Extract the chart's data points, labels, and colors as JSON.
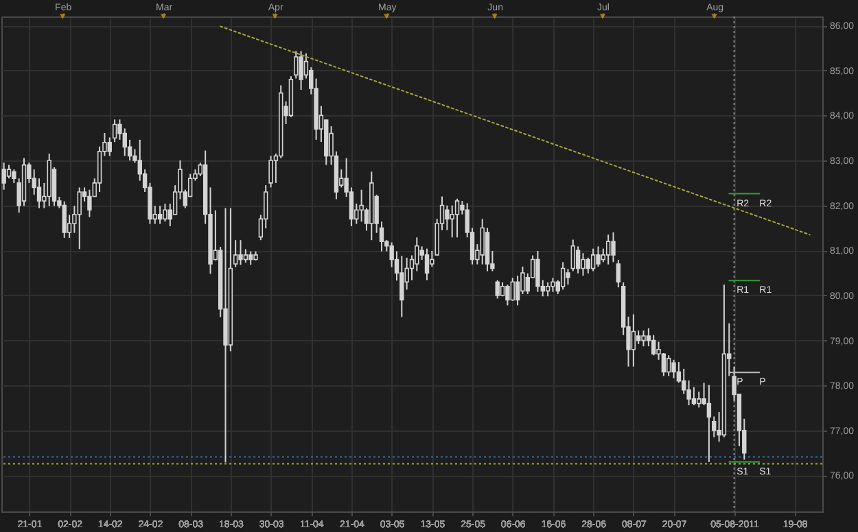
{
  "chart_data": {
    "type": "candlestick",
    "categories": [
      null,
      null,
      null,
      null,
      null,
      "21-01",
      null,
      null,
      null,
      null,
      null,
      null,
      null,
      "02-02",
      null,
      null,
      null,
      null,
      null,
      null,
      null,
      "14-02",
      null,
      null,
      null,
      null,
      null,
      null,
      null,
      "24-02",
      null,
      null,
      null,
      null,
      null,
      null,
      null,
      "08-03",
      null,
      null,
      null,
      null,
      null,
      null,
      null,
      "18-03",
      null,
      null,
      null,
      null,
      null,
      null,
      null,
      "30-03",
      null,
      null,
      null,
      null,
      null,
      null,
      null,
      "11-04",
      null,
      null,
      null,
      null,
      null,
      null,
      null,
      "21-04",
      null,
      null,
      null,
      null,
      null,
      null,
      null,
      "03-05",
      null,
      null,
      null,
      null,
      null,
      null,
      null,
      "13-05",
      null,
      null,
      null,
      null,
      null,
      null,
      null,
      "25-05",
      null,
      null,
      null,
      null,
      null,
      null,
      null,
      "06-06",
      null,
      null,
      null,
      null,
      null,
      null,
      null,
      "16-06",
      null,
      null,
      null,
      null,
      null,
      null,
      null,
      "28-06",
      null,
      null,
      null,
      null,
      null,
      null,
      null,
      "08-07",
      null,
      null,
      null,
      null,
      null,
      null,
      null,
      "20-07",
      null,
      null,
      null,
      null,
      null,
      null,
      null,
      null,
      null,
      null,
      null,
      "05-08-2011",
      null,
      null,
      null,
      null,
      null,
      null,
      null,
      null,
      null,
      null,
      null,
      "19-08",
      null,
      null,
      null,
      null,
      null
    ],
    "x2lim": [
      "2011-01-15",
      "2011-08-31"
    ],
    "x2ticks": [
      {
        "value": "2011-02-01",
        "label": "Feb"
      },
      {
        "value": "2011-03-01",
        "label": "Mar"
      },
      {
        "value": "2011-04-01",
        "label": "Apr"
      },
      {
        "value": "2011-05-02",
        "label": "May"
      },
      {
        "value": "2011-06-01",
        "label": "Jun"
      },
      {
        "value": "2011-07-01",
        "label": "Jul"
      },
      {
        "value": "2011-08-01",
        "label": "Aug"
      }
    ],
    "ylim": [
      75.2,
      86.2
    ],
    "yticks": [
      {
        "value": 76,
        "label": "76,00"
      },
      {
        "value": 77,
        "label": "77,00"
      },
      {
        "value": 78,
        "label": "78,00"
      },
      {
        "value": 79,
        "label": "79,00"
      },
      {
        "value": 80,
        "label": "80,00"
      },
      {
        "value": 81,
        "label": "81,00"
      },
      {
        "value": 82,
        "label": "82,00"
      },
      {
        "value": 83,
        "label": "83,00"
      },
      {
        "value": 84,
        "label": "84,00"
      },
      {
        "value": 85,
        "label": "85,00"
      },
      {
        "value": 86,
        "label": "86,00"
      }
    ],
    "grid": true,
    "series": [
      {
        "color": "#d4d4d4",
        "ohlc": [
          [
            82.8,
            82.95,
            82.35,
            82.5
          ],
          [
            82.65,
            82.9,
            82.6,
            82.8
          ],
          [
            82.75,
            82.8,
            82.5,
            82.6
          ],
          [
            82.5,
            82.6,
            81.84,
            82.0
          ],
          [
            82.1,
            83.05,
            81.99,
            82.9
          ],
          [
            82.9,
            82.95,
            82.5,
            82.6
          ],
          [
            82.6,
            82.8,
            82.24,
            82.4
          ],
          [
            82.4,
            82.6,
            81.94,
            82.1
          ],
          [
            82.1,
            82.5,
            81.94,
            82.2
          ],
          [
            82.2,
            83.15,
            81.99,
            83.0
          ],
          [
            82.8,
            82.85,
            81.99,
            82.1
          ],
          [
            82.1,
            82.19,
            81.94,
            82.0
          ],
          [
            82.0,
            82.09,
            81.28,
            81.4
          ],
          [
            81.4,
            81.79,
            81.28,
            81.6
          ],
          [
            81.6,
            81.99,
            81.39,
            81.8
          ],
          [
            81.8,
            82.4,
            81.03,
            82.3
          ],
          [
            82.3,
            82.4,
            82.09,
            82.2
          ],
          [
            82.2,
            82.35,
            81.74,
            81.9
          ],
          [
            82.2,
            82.6,
            82.19,
            82.5
          ],
          [
            82.5,
            83.31,
            82.3,
            83.2
          ],
          [
            83.2,
            83.61,
            83.1,
            83.4
          ],
          [
            83.4,
            83.51,
            83.1,
            83.2
          ],
          [
            83.5,
            83.91,
            83.41,
            83.8
          ],
          [
            83.8,
            83.91,
            83.46,
            83.6
          ],
          [
            83.6,
            83.71,
            83.1,
            83.3
          ],
          [
            83.3,
            83.46,
            83.0,
            83.1
          ],
          [
            83.1,
            83.25,
            82.95,
            83.0
          ],
          [
            83.0,
            83.46,
            82.55,
            82.7
          ],
          [
            82.7,
            82.8,
            82.3,
            82.4
          ],
          [
            82.4,
            82.5,
            81.59,
            81.7
          ],
          [
            81.7,
            81.99,
            81.59,
            81.8
          ],
          [
            81.8,
            81.99,
            81.59,
            81.7
          ],
          [
            81.7,
            82.04,
            81.64,
            81.9
          ],
          [
            81.9,
            82.04,
            81.54,
            81.7
          ],
          [
            81.8,
            82.45,
            81.79,
            82.3
          ],
          [
            82.3,
            83.0,
            82.14,
            82.8
          ],
          [
            82.3,
            82.35,
            81.94,
            82.0
          ],
          [
            82.2,
            82.7,
            82.19,
            82.6
          ],
          [
            82.6,
            82.8,
            82.55,
            82.7
          ],
          [
            82.7,
            82.95,
            82.65,
            82.9
          ],
          [
            82.9,
            83.22,
            81.59,
            81.8
          ],
          [
            81.8,
            82.4,
            80.48,
            80.7
          ],
          [
            80.8,
            81.89,
            80.78,
            81.0
          ],
          [
            81.0,
            81.08,
            79.52,
            79.7
          ],
          [
            79.7,
            81.94,
            76.29,
            78.9
          ],
          [
            78.9,
            81.94,
            78.76,
            80.6
          ],
          [
            80.7,
            81.23,
            80.63,
            80.9
          ],
          [
            80.9,
            81.23,
            80.68,
            80.8
          ],
          [
            80.8,
            81.03,
            80.73,
            80.9
          ],
          [
            80.9,
            80.98,
            80.68,
            80.8
          ],
          [
            80.8,
            80.98,
            80.78,
            80.9
          ],
          [
            81.3,
            81.79,
            81.23,
            81.7
          ],
          [
            81.7,
            82.45,
            81.49,
            82.3
          ],
          [
            82.5,
            83.1,
            82.4,
            83.0
          ],
          [
            83.0,
            83.15,
            82.5,
            83.1
          ],
          [
            83.1,
            84.67,
            83.05,
            84.5
          ],
          [
            84.2,
            84.31,
            83.81,
            84.0
          ],
          [
            84.0,
            84.87,
            83.96,
            84.8
          ],
          [
            84.9,
            85.43,
            84.82,
            85.3
          ],
          [
            85.3,
            85.43,
            84.57,
            84.8
          ],
          [
            84.9,
            85.38,
            84.82,
            85.2
          ],
          [
            85.0,
            85.07,
            84.47,
            84.6
          ],
          [
            84.6,
            84.82,
            83.46,
            83.7
          ],
          [
            83.7,
            84.21,
            83.41,
            84.0
          ],
          [
            83.9,
            83.91,
            82.9,
            83.1
          ],
          [
            83.1,
            83.76,
            82.9,
            83.6
          ],
          [
            83.1,
            83.2,
            82.14,
            82.3
          ],
          [
            82.45,
            82.8,
            82.4,
            82.6
          ],
          [
            82.6,
            83.05,
            82.19,
            82.3
          ],
          [
            82.3,
            82.4,
            81.54,
            81.7
          ],
          [
            81.7,
            82.04,
            81.59,
            81.9
          ],
          [
            81.9,
            82.35,
            81.64,
            82.0
          ],
          [
            81.9,
            81.94,
            81.44,
            81.6
          ],
          [
            81.6,
            82.75,
            81.23,
            82.5
          ],
          [
            82.2,
            82.24,
            81.39,
            81.6
          ],
          [
            81.5,
            81.64,
            80.98,
            81.2
          ],
          [
            81.2,
            81.23,
            80.98,
            81.1
          ],
          [
            81.1,
            81.18,
            80.63,
            80.8
          ],
          [
            80.8,
            80.98,
            80.33,
            80.5
          ],
          [
            80.5,
            80.88,
            79.52,
            79.9
          ],
          [
            80.3,
            80.84,
            80.13,
            80.6
          ],
          [
            80.6,
            80.89,
            80.34,
            80.8
          ],
          [
            80.7,
            81.29,
            80.54,
            81.1
          ],
          [
            81.0,
            81.09,
            80.79,
            80.9
          ],
          [
            80.9,
            81.04,
            80.34,
            80.5
          ],
          [
            80.7,
            80.99,
            80.64,
            80.8
          ],
          [
            80.9,
            81.7,
            80.89,
            81.6
          ],
          [
            81.6,
            82.2,
            81.45,
            82.0
          ],
          [
            81.9,
            82.0,
            81.45,
            81.7
          ],
          [
            81.7,
            82.0,
            81.29,
            81.8
          ],
          [
            81.8,
            82.15,
            81.29,
            82.1
          ],
          [
            82.0,
            82.1,
            81.8,
            81.9
          ],
          [
            81.9,
            82.05,
            81.29,
            81.4
          ],
          [
            81.4,
            81.5,
            80.69,
            80.8
          ],
          [
            80.8,
            81.14,
            80.69,
            81.0
          ],
          [
            80.9,
            81.7,
            80.69,
            81.5
          ],
          [
            81.4,
            81.5,
            80.54,
            80.7
          ],
          [
            80.7,
            80.99,
            80.54,
            80.6
          ],
          [
            80.3,
            80.34,
            79.93,
            80.0
          ],
          [
            80.0,
            80.29,
            79.98,
            80.2
          ],
          [
            80.2,
            80.24,
            79.78,
            79.9
          ],
          [
            79.9,
            80.39,
            79.88,
            80.3
          ],
          [
            80.3,
            80.44,
            79.78,
            79.9
          ],
          [
            80.1,
            80.64,
            80.03,
            80.5
          ],
          [
            80.4,
            80.49,
            80.03,
            80.1
          ],
          [
            80.4,
            80.89,
            80.39,
            80.8
          ],
          [
            80.8,
            80.99,
            80.08,
            80.2
          ],
          [
            80.2,
            80.34,
            79.98,
            80.1
          ],
          [
            80.1,
            80.29,
            79.98,
            80.2
          ],
          [
            80.2,
            80.39,
            80.08,
            80.3
          ],
          [
            80.3,
            80.34,
            80.03,
            80.1
          ],
          [
            80.2,
            80.74,
            80.13,
            80.6
          ],
          [
            80.5,
            80.59,
            80.24,
            80.4
          ],
          [
            80.6,
            81.24,
            80.54,
            81.1
          ],
          [
            81.0,
            81.09,
            80.49,
            80.6
          ],
          [
            80.6,
            80.94,
            80.44,
            80.8
          ],
          [
            80.8,
            80.84,
            80.49,
            80.6
          ],
          [
            80.6,
            81.04,
            80.54,
            80.9
          ],
          [
            80.9,
            81.09,
            80.64,
            80.7
          ],
          [
            80.8,
            81.04,
            80.74,
            80.9
          ],
          [
            80.9,
            81.35,
            80.69,
            81.2
          ],
          [
            81.2,
            81.4,
            80.74,
            80.9
          ],
          [
            80.7,
            80.79,
            80.18,
            80.3
          ],
          [
            80.2,
            80.29,
            79.12,
            79.3
          ],
          [
            79.3,
            79.53,
            78.42,
            78.8
          ],
          [
            78.8,
            79.58,
            78.42,
            79.2
          ],
          [
            79.1,
            79.22,
            78.92,
            79.0
          ],
          [
            79.0,
            79.22,
            78.87,
            79.1
          ],
          [
            79.1,
            79.27,
            78.87,
            79.0
          ],
          [
            79.0,
            79.12,
            78.67,
            78.7
          ],
          [
            78.7,
            78.97,
            78.57,
            78.8
          ],
          [
            78.7,
            78.72,
            78.21,
            78.3
          ],
          [
            78.3,
            78.67,
            78.21,
            78.6
          ],
          [
            78.5,
            78.57,
            78.16,
            78.3
          ],
          [
            78.3,
            78.52,
            78.06,
            78.1
          ],
          [
            78.1,
            78.37,
            77.81,
            77.9
          ],
          [
            77.9,
            78.11,
            77.56,
            77.7
          ],
          [
            77.7,
            77.96,
            77.56,
            77.6
          ],
          [
            77.6,
            77.86,
            77.51,
            77.7
          ],
          [
            77.7,
            78.06,
            77.56,
            77.6
          ],
          [
            77.6,
            78.01,
            76.3,
            77.3
          ],
          [
            77.2,
            77.31,
            76.85,
            77.0
          ],
          [
            77.0,
            77.41,
            76.75,
            76.9
          ],
          [
            76.9,
            80.24,
            76.85,
            78.7
          ],
          [
            78.7,
            79.38,
            78.21,
            78.6
          ],
          [
            78.2,
            78.42,
            77.66,
            77.8
          ],
          [
            77.8,
            77.81,
            76.65,
            77.0
          ],
          [
            77.0,
            77.26,
            76.35,
            76.5
          ],
          null,
          null,
          null,
          null,
          null,
          null,
          null,
          null,
          null,
          null,
          null,
          null,
          null,
          null,
          null
        ]
      },
      {
        "type": "line",
        "color": "#a8a83c",
        "line_style": "dotted",
        "values": [
          null,
          null,
          null,
          null,
          null,
          null,
          null,
          null,
          null,
          null,
          null,
          null,
          null,
          null,
          null,
          null,
          null,
          null,
          null,
          null,
          null,
          null,
          null,
          null,
          null,
          null,
          null,
          null,
          null,
          null,
          null,
          null,
          null,
          null,
          null,
          null,
          null,
          null,
          null,
          null,
          null,
          null,
          null,
          85.98,
          null,
          null,
          null,
          null,
          null,
          null,
          null,
          null,
          null,
          null,
          null,
          null,
          null,
          null,
          null,
          null,
          null,
          null,
          null,
          null,
          null,
          null,
          null,
          null,
          null,
          null,
          null,
          null,
          null,
          null,
          null,
          null,
          null,
          null,
          null,
          null,
          null,
          null,
          null,
          null,
          null,
          null,
          null,
          null,
          null,
          null,
          null,
          null,
          null,
          null,
          null,
          null,
          null,
          null,
          null,
          null,
          null,
          null,
          null,
          null,
          null,
          null,
          null,
          null,
          null,
          null,
          null,
          null,
          null,
          null,
          null,
          null,
          null,
          null,
          null,
          null,
          null,
          null,
          null,
          null,
          null,
          null,
          null,
          null,
          null,
          null,
          null,
          null,
          null,
          null,
          null,
          null,
          null,
          null,
          null,
          null,
          null,
          null,
          null,
          null,
          null,
          null,
          null,
          null,
          null,
          null,
          null,
          null,
          null,
          null,
          null,
          null,
          null,
          null,
          null,
          null,
          81.35,
          null,
          null
        ]
      },
      {
        "type": "line",
        "name": "R2",
        "color": "#2f9e2f",
        "values": [
          null,
          null,
          null,
          null,
          null,
          null,
          null,
          null,
          null,
          null,
          null,
          null,
          null,
          null,
          null,
          null,
          null,
          null,
          null,
          null,
          null,
          null,
          null,
          null,
          null,
          null,
          null,
          null,
          null,
          null,
          null,
          null,
          null,
          null,
          null,
          null,
          null,
          null,
          null,
          null,
          null,
          null,
          null,
          null,
          null,
          null,
          null,
          null,
          null,
          null,
          null,
          null,
          null,
          null,
          null,
          null,
          null,
          null,
          null,
          null,
          null,
          null,
          null,
          null,
          null,
          null,
          null,
          null,
          null,
          null,
          null,
          null,
          null,
          null,
          null,
          null,
          null,
          null,
          null,
          null,
          null,
          null,
          null,
          null,
          null,
          null,
          null,
          null,
          null,
          null,
          null,
          null,
          null,
          null,
          null,
          null,
          null,
          null,
          null,
          null,
          null,
          null,
          null,
          null,
          null,
          null,
          null,
          null,
          null,
          null,
          null,
          null,
          null,
          null,
          null,
          null,
          null,
          null,
          null,
          null,
          null,
          null,
          null,
          null,
          null,
          null,
          null,
          null,
          null,
          null,
          null,
          null,
          null,
          null,
          null,
          null,
          null,
          null,
          null,
          null,
          null,
          null,
          null,
          null,
          82.26,
          82.26,
          82.26,
          82.26,
          82.26,
          82.26,
          82.26,
          null,
          null,
          null,
          null,
          null,
          null,
          null,
          null,
          null,
          null,
          null,
          null
        ]
      },
      {
        "type": "line",
        "name": "R1",
        "color": "#2f9e2f",
        "values": [
          null,
          null,
          null,
          null,
          null,
          null,
          null,
          null,
          null,
          null,
          null,
          null,
          null,
          null,
          null,
          null,
          null,
          null,
          null,
          null,
          null,
          null,
          null,
          null,
          null,
          null,
          null,
          null,
          null,
          null,
          null,
          null,
          null,
          null,
          null,
          null,
          null,
          null,
          null,
          null,
          null,
          null,
          null,
          null,
          null,
          null,
          null,
          null,
          null,
          null,
          null,
          null,
          null,
          null,
          null,
          null,
          null,
          null,
          null,
          null,
          null,
          null,
          null,
          null,
          null,
          null,
          null,
          null,
          null,
          null,
          null,
          null,
          null,
          null,
          null,
          null,
          null,
          null,
          null,
          null,
          null,
          null,
          null,
          null,
          null,
          null,
          null,
          null,
          null,
          null,
          null,
          null,
          null,
          null,
          null,
          null,
          null,
          null,
          null,
          null,
          null,
          null,
          null,
          null,
          null,
          null,
          null,
          null,
          null,
          null,
          null,
          null,
          null,
          null,
          null,
          null,
          null,
          null,
          null,
          null,
          null,
          null,
          null,
          null,
          null,
          null,
          null,
          null,
          null,
          null,
          null,
          null,
          null,
          null,
          null,
          null,
          null,
          null,
          null,
          null,
          null,
          null,
          null,
          null,
          80.33,
          80.33,
          80.33,
          80.33,
          80.33,
          80.33,
          80.33,
          null,
          null,
          null,
          null,
          null,
          null,
          null,
          null,
          null,
          null,
          null,
          null
        ]
      },
      {
        "type": "line",
        "name": "P",
        "color": "#bfbfbf",
        "values": [
          null,
          null,
          null,
          null,
          null,
          null,
          null,
          null,
          null,
          null,
          null,
          null,
          null,
          null,
          null,
          null,
          null,
          null,
          null,
          null,
          null,
          null,
          null,
          null,
          null,
          null,
          null,
          null,
          null,
          null,
          null,
          null,
          null,
          null,
          null,
          null,
          null,
          null,
          null,
          null,
          null,
          null,
          null,
          null,
          null,
          null,
          null,
          null,
          null,
          null,
          null,
          null,
          null,
          null,
          null,
          null,
          null,
          null,
          null,
          null,
          null,
          null,
          null,
          null,
          null,
          null,
          null,
          null,
          null,
          null,
          null,
          null,
          null,
          null,
          null,
          null,
          null,
          null,
          null,
          null,
          null,
          null,
          null,
          null,
          null,
          null,
          null,
          null,
          null,
          null,
          null,
          null,
          null,
          null,
          null,
          null,
          null,
          null,
          null,
          null,
          null,
          null,
          null,
          null,
          null,
          null,
          null,
          null,
          null,
          null,
          null,
          null,
          null,
          null,
          null,
          null,
          null,
          null,
          null,
          null,
          null,
          null,
          null,
          null,
          null,
          null,
          null,
          null,
          null,
          null,
          null,
          null,
          null,
          null,
          null,
          null,
          null,
          null,
          null,
          null,
          null,
          null,
          null,
          null,
          78.29,
          78.29,
          78.29,
          78.29,
          78.29,
          78.29,
          78.29,
          null,
          null,
          null,
          null,
          null,
          null,
          null,
          null,
          null,
          null,
          null,
          null
        ]
      },
      {
        "type": "line",
        "name": "S1",
        "color": "#2f9e2f",
        "values": [
          null,
          null,
          null,
          null,
          null,
          null,
          null,
          null,
          null,
          null,
          null,
          null,
          null,
          null,
          null,
          null,
          null,
          null,
          null,
          null,
          null,
          null,
          null,
          null,
          null,
          null,
          null,
          null,
          null,
          null,
          null,
          null,
          null,
          null,
          null,
          null,
          null,
          null,
          null,
          null,
          null,
          null,
          null,
          null,
          null,
          null,
          null,
          null,
          null,
          null,
          null,
          null,
          null,
          null,
          null,
          null,
          null,
          null,
          null,
          null,
          null,
          null,
          null,
          null,
          null,
          null,
          null,
          null,
          null,
          null,
          null,
          null,
          null,
          null,
          null,
          null,
          null,
          null,
          null,
          null,
          null,
          null,
          null,
          null,
          null,
          null,
          null,
          null,
          null,
          null,
          null,
          null,
          null,
          null,
          null,
          null,
          null,
          null,
          null,
          null,
          null,
          null,
          null,
          null,
          null,
          null,
          null,
          null,
          null,
          null,
          null,
          null,
          null,
          null,
          null,
          null,
          null,
          null,
          null,
          null,
          null,
          null,
          null,
          null,
          null,
          null,
          null,
          null,
          null,
          null,
          null,
          null,
          null,
          null,
          null,
          null,
          null,
          null,
          null,
          null,
          null,
          null,
          null,
          null,
          76.3,
          76.3,
          76.3,
          76.3,
          76.3,
          76.3,
          76.3,
          null,
          null,
          null,
          null,
          null,
          null,
          null,
          null,
          null,
          null,
          null,
          null
        ]
      }
    ],
    "ref_lines": [
      {
        "axis": "y",
        "value": 76.41,
        "color": "#2b6fb5",
        "line_style": "dotted"
      },
      {
        "axis": "y",
        "value": 76.26,
        "color": "#a8a83c",
        "line_style": "dotted"
      },
      {
        "axis": "x",
        "value": "05-08-2011",
        "color": "#8a8a8a",
        "line_style": "dotted"
      }
    ]
  }
}
